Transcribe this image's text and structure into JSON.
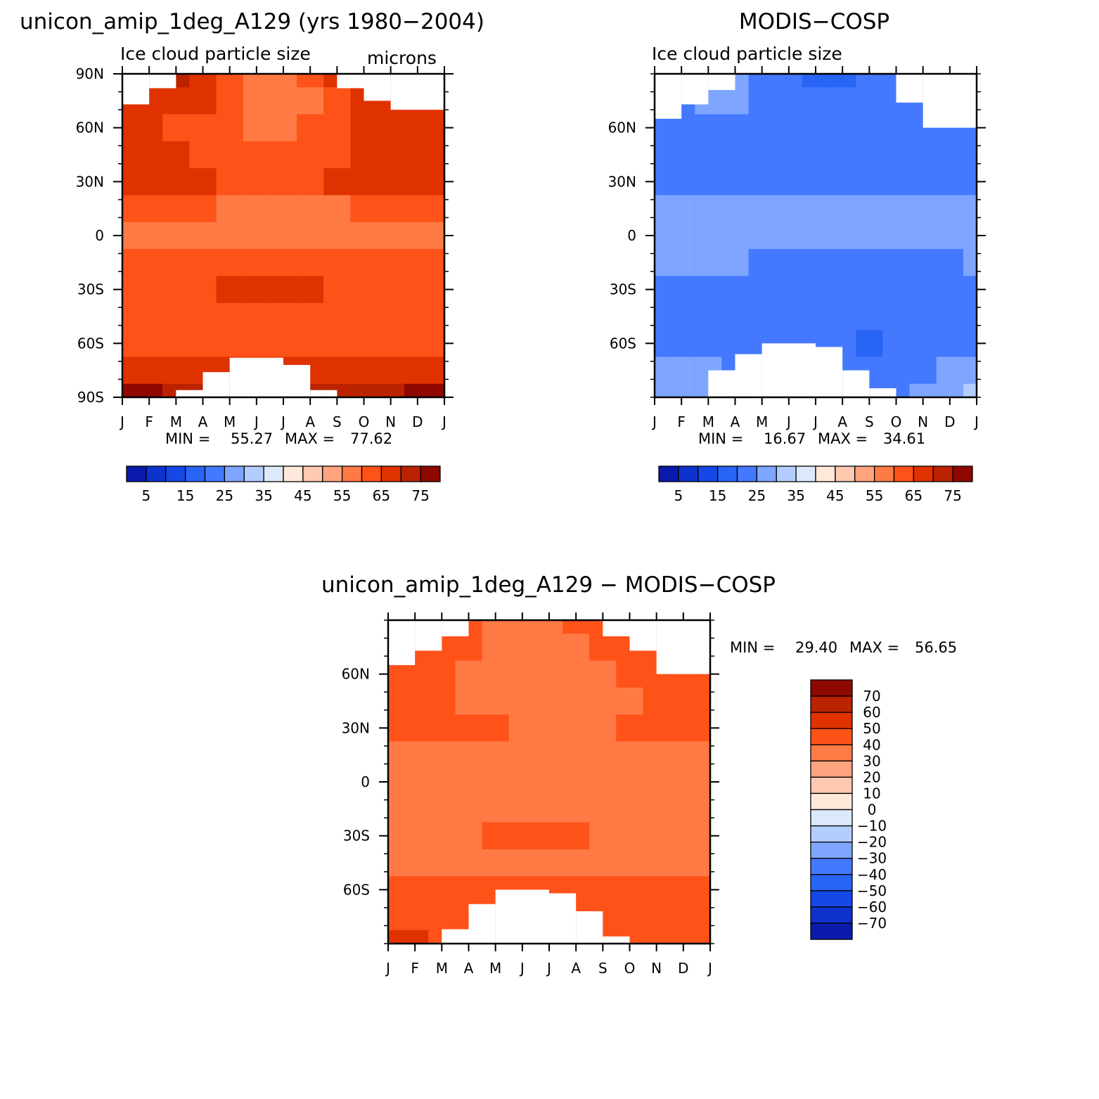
{
  "colorbar_colors": [
    "#00008b",
    "#0a1aab",
    "#0d33cc",
    "#1548e6",
    "#2864f5",
    "#4479ff",
    "#7ea6ff",
    "#b3cdff",
    "#dce9fa",
    "#ffe8d9",
    "#ffc8b0",
    "#ffa47e",
    "#ff7a45",
    "#ff5219",
    "#e03200",
    "#bb2200",
    "#8e0800"
  ],
  "chart_data": [
    {
      "type": "heatmap",
      "id": "model",
      "title": "unicon_amip_1deg_A129 (yrs 1980−2004)",
      "subtitle": "Ice cloud particle size",
      "units": "microns",
      "x_ticks": [
        "J",
        "F",
        "M",
        "A",
        "M",
        "J",
        "J",
        "A",
        "S",
        "O",
        "N",
        "D",
        "J"
      ],
      "y_ticks": [
        "90N",
        "60N",
        "30N",
        "0",
        "30S",
        "60S",
        "90S"
      ],
      "min_label": "MIN = ",
      "min_value": "55.27",
      "max_label": "MAX = ",
      "max_value": "77.62",
      "colorbar_labels": [
        "5",
        "15",
        "25",
        "35",
        "45",
        "55",
        "65",
        "75"
      ],
      "base_level": 13,
      "month_mid": [
        0,
        1,
        2,
        3,
        4,
        5,
        6,
        7,
        8,
        9,
        10,
        11,
        12
      ],
      "lat_nodes": [
        90,
        75,
        60,
        45,
        30,
        15,
        0,
        -15,
        -30,
        -45,
        -60,
        -75,
        -90
      ],
      "levels": [
        [
          14,
          15,
          15,
          14,
          13,
          12,
          12,
          13,
          14,
          14,
          15,
          15,
          14
        ],
        [
          14,
          14,
          14,
          14,
          13,
          12,
          12,
          12,
          13,
          14,
          14,
          14,
          14
        ],
        [
          14,
          14,
          13,
          13,
          13,
          12,
          12,
          13,
          13,
          14,
          14,
          14,
          14
        ],
        [
          14,
          14,
          14,
          13,
          13,
          13,
          13,
          13,
          13,
          14,
          14,
          14,
          14
        ],
        [
          14,
          14,
          14,
          14,
          13,
          13,
          13,
          13,
          14,
          14,
          14,
          14,
          14
        ],
        [
          13,
          13,
          13,
          13,
          12,
          12,
          12,
          12,
          12,
          13,
          13,
          13,
          13
        ],
        [
          12,
          12,
          12,
          12,
          12,
          12,
          12,
          12,
          12,
          12,
          12,
          12,
          12
        ],
        [
          13,
          13,
          13,
          13,
          13,
          13,
          13,
          13,
          13,
          13,
          13,
          13,
          13
        ],
        [
          13,
          13,
          13,
          13,
          14,
          14,
          14,
          14,
          13,
          13,
          13,
          13,
          13
        ],
        [
          13,
          13,
          13,
          13,
          13,
          13,
          13,
          13,
          13,
          13,
          13,
          13,
          13
        ],
        [
          13,
          13,
          13,
          13,
          13,
          13,
          13,
          13,
          13,
          13,
          13,
          13,
          13
        ],
        [
          14,
          14,
          14,
          14,
          14,
          14,
          14,
          14,
          14,
          14,
          14,
          14,
          14
        ],
        [
          16,
          16,
          15,
          15,
          15,
          15,
          15,
          15,
          15,
          15,
          15,
          16,
          16
        ]
      ],
      "missing": [
        [
          0,
          1,
          73,
          90
        ],
        [
          1,
          2,
          82,
          90
        ],
        [
          8,
          9,
          82,
          90
        ],
        [
          9,
          10,
          75,
          90
        ],
        [
          10,
          12,
          70,
          90
        ],
        [
          2,
          3,
          -90,
          -86
        ],
        [
          3,
          4,
          -90,
          -76
        ],
        [
          4,
          6,
          -90,
          -68
        ],
        [
          6,
          7,
          -90,
          -72
        ],
        [
          7,
          8,
          -90,
          -86
        ]
      ]
    },
    {
      "type": "heatmap",
      "id": "obs",
      "title": "MODIS−COSP",
      "subtitle": "Ice cloud particle size",
      "x_ticks": [
        "J",
        "F",
        "M",
        "A",
        "M",
        "J",
        "J",
        "A",
        "S",
        "O",
        "N",
        "D",
        "J"
      ],
      "y_ticks": [
        "60N",
        "30N",
        "0",
        "30S",
        "60S"
      ],
      "min_label": "MIN = ",
      "min_value": "16.67",
      "max_label": "MAX = ",
      "max_value": "34.61",
      "colorbar_labels": [
        "5",
        "15",
        "25",
        "35",
        "45",
        "55",
        "65",
        "75"
      ],
      "base_level": 5,
      "month_mid": [
        0,
        1,
        2,
        3,
        4,
        5,
        6,
        7,
        8,
        9,
        10,
        11,
        12
      ],
      "lat_nodes": [
        90,
        75,
        60,
        45,
        30,
        15,
        0,
        -15,
        -30,
        -45,
        -60,
        -75,
        -90
      ],
      "levels": [
        [
          5,
          5,
          5,
          6,
          5,
          5,
          4,
          4,
          5,
          5,
          5,
          5,
          5
        ],
        [
          5,
          5,
          6,
          6,
          5,
          5,
          5,
          5,
          5,
          5,
          5,
          5,
          5
        ],
        [
          5,
          5,
          5,
          5,
          5,
          5,
          5,
          5,
          5,
          5,
          5,
          5,
          5
        ],
        [
          5,
          5,
          5,
          5,
          5,
          5,
          5,
          5,
          5,
          5,
          5,
          5,
          5
        ],
        [
          5,
          5,
          5,
          5,
          5,
          5,
          5,
          5,
          5,
          5,
          5,
          5,
          5
        ],
        [
          6,
          6,
          6,
          6,
          6,
          6,
          6,
          6,
          6,
          6,
          6,
          6,
          6
        ],
        [
          6,
          6,
          6,
          6,
          6,
          6,
          6,
          6,
          6,
          6,
          6,
          6,
          6
        ],
        [
          6,
          6,
          6,
          6,
          5,
          5,
          5,
          5,
          5,
          5,
          5,
          5,
          6
        ],
        [
          5,
          5,
          5,
          5,
          5,
          5,
          5,
          5,
          5,
          5,
          5,
          5,
          5
        ],
        [
          5,
          5,
          5,
          5,
          5,
          5,
          5,
          5,
          5,
          5,
          5,
          5,
          5
        ],
        [
          5,
          5,
          5,
          5,
          5,
          5,
          5,
          5,
          4,
          5,
          5,
          5,
          5
        ],
        [
          6,
          6,
          6,
          5,
          5,
          5,
          5,
          5,
          5,
          5,
          5,
          6,
          6
        ],
        [
          6,
          6,
          6,
          5,
          5,
          5,
          5,
          5,
          5,
          5,
          6,
          6,
          7
        ]
      ],
      "missing": [
        [
          0,
          1,
          65,
          90
        ],
        [
          1,
          2,
          73,
          90
        ],
        [
          2,
          3,
          81,
          90
        ],
        [
          9,
          10,
          74,
          90
        ],
        [
          10,
          12,
          60,
          90
        ],
        [
          2,
          3,
          -90,
          -75
        ],
        [
          3,
          4,
          -90,
          -66
        ],
        [
          4,
          6,
          -90,
          -60
        ],
        [
          6,
          7,
          -90,
          -62
        ],
        [
          7,
          8,
          -90,
          -75
        ],
        [
          8,
          9,
          -90,
          -85
        ]
      ]
    },
    {
      "type": "heatmap",
      "id": "diff",
      "title": "unicon_amip_1deg_A129 − MODIS−COSP",
      "x_ticks": [
        "J",
        "F",
        "M",
        "A",
        "M",
        "J",
        "J",
        "A",
        "S",
        "O",
        "N",
        "D",
        "J"
      ],
      "y_ticks": [
        "60N",
        "30N",
        "0",
        "30S",
        "60S"
      ],
      "min_label": "MIN = ",
      "min_value": "29.40",
      "max_label": "MAX = ",
      "max_value": "56.65",
      "colorbar_labels": [
        "70",
        "60",
        "50",
        "40",
        "30",
        "20",
        "10",
        "0",
        "−10",
        "−20",
        "−30",
        "−40",
        "−50",
        "−60",
        "−70"
      ],
      "base_level": 13,
      "month_mid": [
        0,
        1,
        2,
        3,
        4,
        5,
        6,
        7,
        8,
        9,
        10,
        11,
        12
      ],
      "lat_nodes": [
        90,
        75,
        60,
        45,
        30,
        15,
        0,
        -15,
        -30,
        -45,
        -60,
        -75,
        -90
      ],
      "levels": [
        [
          13,
          13,
          13,
          13,
          12,
          12,
          12,
          13,
          13,
          13,
          13,
          13,
          13
        ],
        [
          13,
          13,
          13,
          13,
          12,
          12,
          12,
          12,
          13,
          13,
          13,
          13,
          13
        ],
        [
          13,
          13,
          13,
          12,
          12,
          12,
          12,
          12,
          12,
          13,
          13,
          13,
          13
        ],
        [
          13,
          13,
          13,
          12,
          12,
          12,
          12,
          12,
          12,
          12,
          13,
          13,
          13
        ],
        [
          13,
          13,
          13,
          13,
          13,
          12,
          12,
          12,
          12,
          13,
          13,
          13,
          13
        ],
        [
          12,
          12,
          12,
          12,
          12,
          12,
          12,
          12,
          12,
          12,
          12,
          12,
          12
        ],
        [
          12,
          12,
          12,
          12,
          12,
          12,
          12,
          12,
          12,
          12,
          12,
          12,
          12
        ],
        [
          12,
          12,
          12,
          12,
          12,
          12,
          12,
          12,
          12,
          12,
          12,
          12,
          12
        ],
        [
          12,
          12,
          12,
          12,
          13,
          13,
          13,
          13,
          12,
          12,
          12,
          12,
          12
        ],
        [
          12,
          12,
          12,
          12,
          12,
          12,
          12,
          12,
          12,
          12,
          12,
          12,
          12
        ],
        [
          13,
          13,
          13,
          13,
          13,
          13,
          13,
          13,
          13,
          13,
          13,
          13,
          13
        ],
        [
          13,
          13,
          13,
          13,
          13,
          13,
          13,
          13,
          13,
          13,
          13,
          13,
          13
        ],
        [
          14,
          14,
          13,
          13,
          13,
          13,
          13,
          13,
          13,
          13,
          13,
          13,
          13
        ]
      ],
      "missing": [
        [
          0,
          1,
          65,
          90
        ],
        [
          1,
          2,
          73,
          90
        ],
        [
          2,
          3,
          81,
          90
        ],
        [
          8,
          9,
          81,
          90
        ],
        [
          9,
          10,
          73,
          90
        ],
        [
          10,
          12,
          60,
          90
        ],
        [
          2,
          3,
          -90,
          -82
        ],
        [
          3,
          4,
          -90,
          -68
        ],
        [
          4,
          6,
          -90,
          -60
        ],
        [
          6,
          7,
          -90,
          -62
        ],
        [
          7,
          8,
          -90,
          -72
        ],
        [
          8,
          9,
          -90,
          -86
        ]
      ]
    }
  ]
}
